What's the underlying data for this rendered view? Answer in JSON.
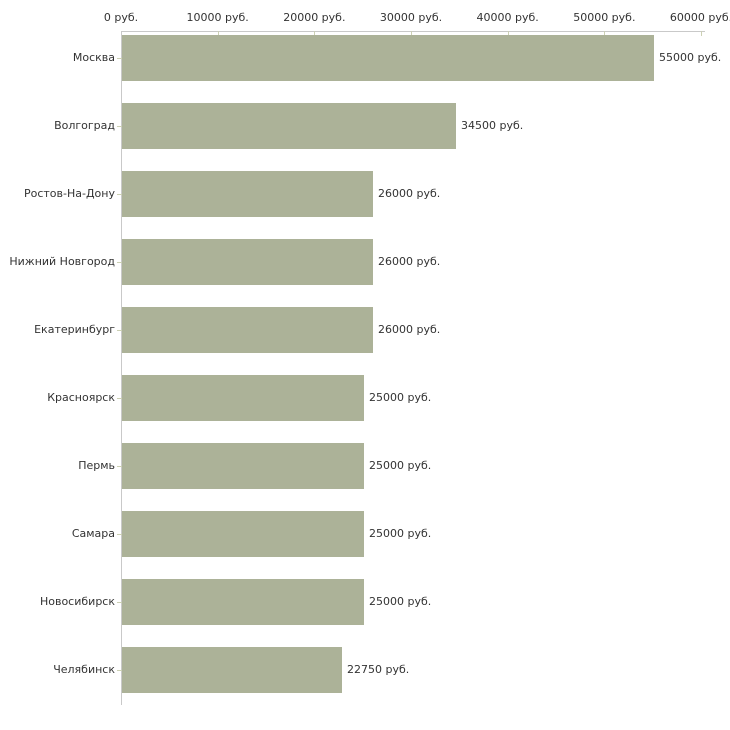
{
  "chart_data": {
    "type": "bar",
    "orientation": "horizontal",
    "title": "",
    "xlabel": "",
    "ylabel": "",
    "unit": "руб.",
    "categories": [
      "Москва",
      "Волгоград",
      "Ростов-На-Дону",
      "Нижний Новгород",
      "Екатеринбург",
      "Красноярск",
      "Пермь",
      "Самара",
      "Новосибирск",
      "Челябинск"
    ],
    "values": [
      55000,
      34500,
      26000,
      26000,
      26000,
      25000,
      25000,
      25000,
      25000,
      22750
    ],
    "value_labels": [
      "55000 руб.",
      "34500 руб.",
      "26000 руб.",
      "26000 руб.",
      "26000 руб.",
      "25000 руб.",
      "25000 руб.",
      "25000 руб.",
      "25000 руб.",
      "22750 руб."
    ],
    "x_axis": {
      "position": "top",
      "min": 0,
      "max": 60000,
      "ticks": [
        0,
        10000,
        20000,
        30000,
        40000,
        50000,
        60000
      ],
      "tick_labels": [
        "0 руб.",
        "10000 руб.",
        "20000 руб.",
        "30000 руб.",
        "40000 руб.",
        "50000 руб.",
        "60000 руб."
      ]
    },
    "grid": false,
    "legend": "none",
    "colors": {
      "bar": "#acb298",
      "axis_line": "#c9c9c9",
      "tick_mark": "#ccd0b4",
      "text": "#333333",
      "background": "#ffffff"
    }
  }
}
